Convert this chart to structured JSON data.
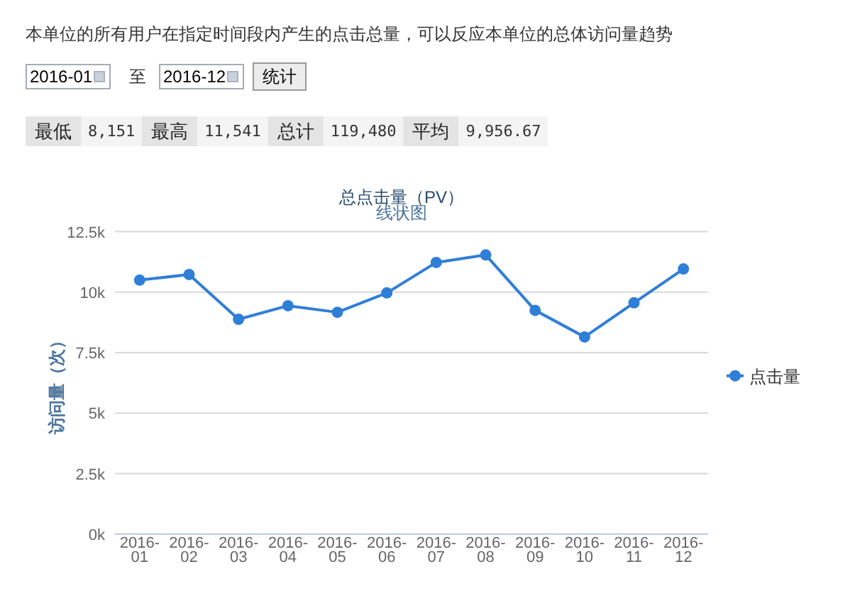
{
  "chart_data": {
    "type": "line",
    "title": "总点击量（PV）",
    "subtitle": "线状图",
    "ylabel": "访问量（次）",
    "categories": [
      "2016-01",
      "2016-02",
      "2016-03",
      "2016-04",
      "2016-05",
      "2016-06",
      "2016-07",
      "2016-08",
      "2016-09",
      "2016-10",
      "2016-11",
      "2016-12"
    ],
    "series": [
      {
        "name": "点击量",
        "color": "#2f7ed8",
        "values": [
          10500,
          10730,
          8880,
          9440,
          9170,
          9970,
          11230,
          11541,
          9250,
          8151,
          9560,
          10960
        ]
      }
    ],
    "ylim": [
      0,
      12500
    ],
    "yticks": [
      {
        "value": 0,
        "label": "0k"
      },
      {
        "value": 2500,
        "label": "2.5k"
      },
      {
        "value": 5000,
        "label": "5k"
      },
      {
        "value": 7500,
        "label": "7.5k"
      },
      {
        "value": 10000,
        "label": "10k"
      },
      {
        "value": 12500,
        "label": "12.5k"
      }
    ],
    "grid": "y",
    "legend": "right",
    "marker": "circle",
    "line_style": "solid",
    "annotations": [
      "本单位的所有用户在指定时间段内产生的点击总量，可以反应本单位的总体访问量趋势",
      "2016-01",
      "至",
      "2016-12",
      "统计",
      "最低",
      "8,151",
      "最高",
      "11,541",
      "总计",
      "119,480",
      "平均",
      "9,956.67"
    ]
  }
}
